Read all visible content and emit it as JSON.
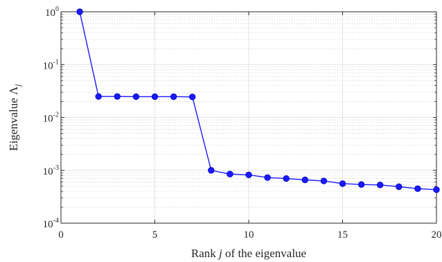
{
  "chart_data": {
    "type": "line",
    "title": "",
    "xlabel": "Rank j of the eigenvalue",
    "xlabel_parts": [
      "Rank ",
      "j",
      " of the eigenvalue"
    ],
    "ylabel": "Eigenvalue Λj",
    "ylabel_parts": [
      "Eigenvalue Λ",
      "j"
    ],
    "x_scale": "linear",
    "y_scale": "log",
    "xlim": [
      0,
      20
    ],
    "ylim": [
      0.0001,
      1
    ],
    "x_ticks": [
      0,
      5,
      10,
      15,
      20
    ],
    "x_tick_labels": [
      "0",
      "5",
      "10",
      "15",
      "20"
    ],
    "y_ticks": [
      0.0001,
      0.001,
      0.01,
      0.1,
      1
    ],
    "y_tick_labels": [
      {
        "base": "10",
        "exp": "-4"
      },
      {
        "base": "10",
        "exp": "-3"
      },
      {
        "base": "10",
        "exp": "-2"
      },
      {
        "base": "10",
        "exp": "-1"
      },
      {
        "base": "10",
        "exp": "0"
      }
    ],
    "grid": true,
    "minor_grid": true,
    "series": [
      {
        "color": "#1a1aff",
        "marker": "circle",
        "x": [
          1,
          2,
          3,
          4,
          5,
          6,
          7,
          8,
          9,
          10,
          11,
          12,
          13,
          14,
          15,
          16,
          17,
          18,
          19,
          20
        ],
        "y": [
          1.0,
          0.025,
          0.025,
          0.0248,
          0.0248,
          0.0248,
          0.0245,
          0.001,
          0.00085,
          0.00082,
          0.00073,
          0.0007,
          0.00066,
          0.00063,
          0.00056,
          0.00054,
          0.00053,
          0.00049,
          0.00045,
          0.00043
        ]
      }
    ]
  }
}
